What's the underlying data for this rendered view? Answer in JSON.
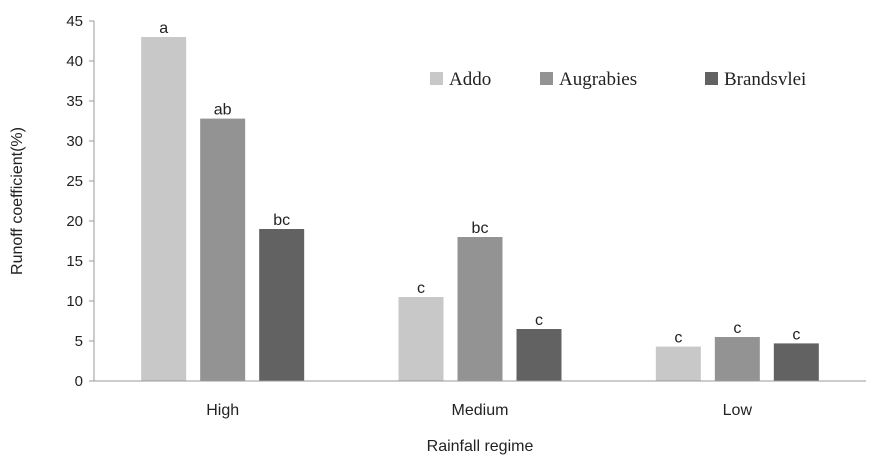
{
  "chart_data": {
    "type": "bar",
    "categories": [
      "High",
      "Medium",
      "Low"
    ],
    "series": [
      {
        "name": "Addo",
        "values": [
          43,
          10.5,
          4.3
        ],
        "labels": [
          "a",
          "c",
          "c"
        ],
        "color": "#c8c8c8"
      },
      {
        "name": "Augrabies",
        "values": [
          32.8,
          18,
          5.5
        ],
        "labels": [
          "ab",
          "bc",
          "c"
        ],
        "color": "#939393"
      },
      {
        "name": "Brandsvlei",
        "values": [
          19,
          6.5,
          4.7
        ],
        "labels": [
          "bc",
          "c",
          "c"
        ],
        "color": "#626262"
      }
    ],
    "xlabel": "Rainfall regime",
    "ylabel": "Runoff coefficient(%)",
    "ylim": [
      0,
      45
    ],
    "yticks": [
      0,
      5,
      10,
      15,
      20,
      25,
      30,
      35,
      40,
      45
    ],
    "grid": false,
    "legend_position": "top-right"
  }
}
